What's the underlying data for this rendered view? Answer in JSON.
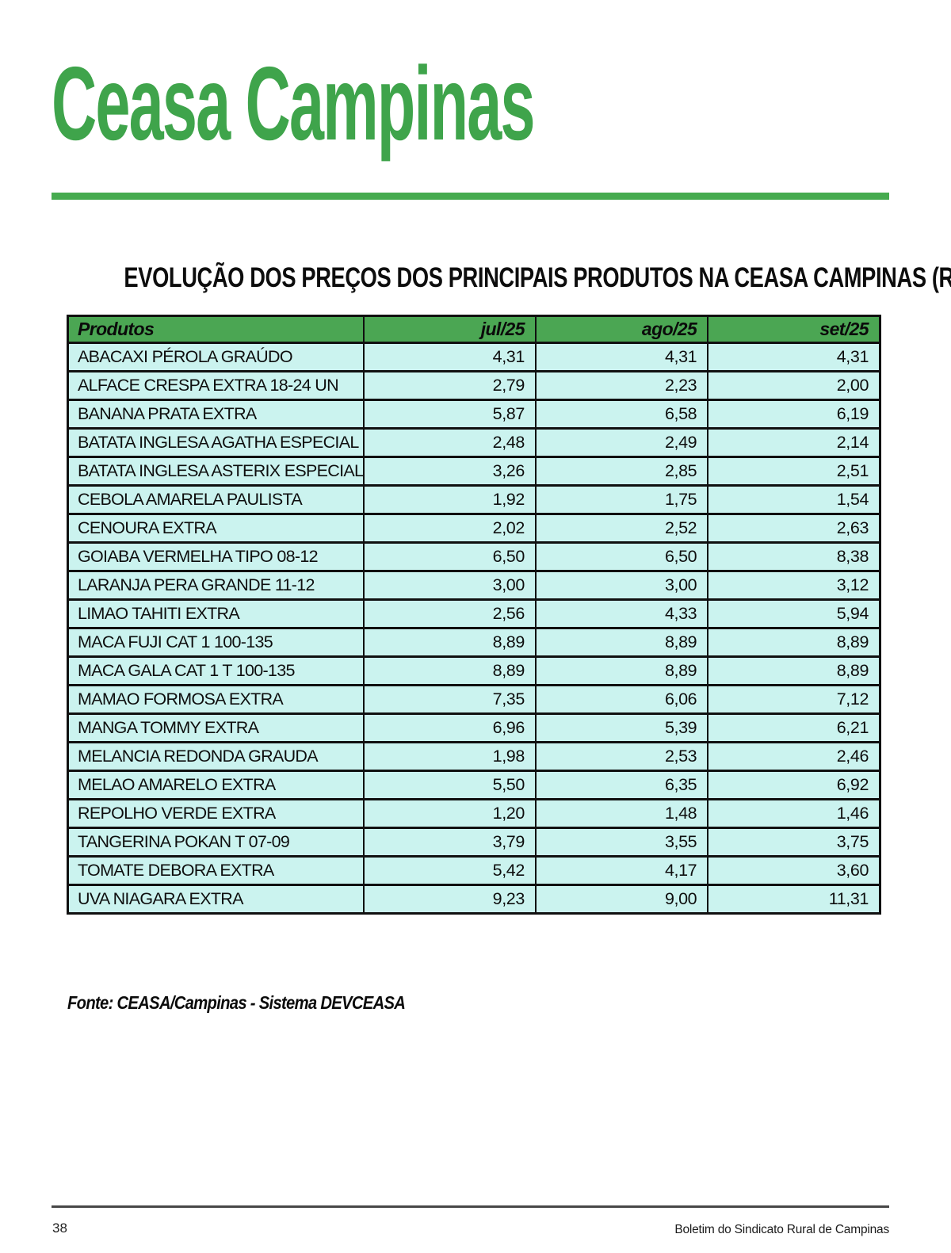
{
  "masthead": {
    "title": "Ceasa Campinas"
  },
  "colors": {
    "masthead_green": "#3fa44b",
    "rule_green": "#46ab4f",
    "table_header_green": "#4ba653",
    "table_cell_cyan": "#cbf3ef",
    "border_black": "#101010"
  },
  "section": {
    "title": "EVOLUÇÃO DOS PREÇOS DOS PRINCIPAIS PRODUTOS NA CEASA CAMPINAS (R$/kg)"
  },
  "table": {
    "headers": [
      "Produtos",
      "jul/25",
      "ago/25",
      "set/25"
    ],
    "rows": [
      {
        "produto": "ABACAXI PÉROLA GRAÚDO",
        "precos": [
          "4,31",
          "4,31",
          "4,31"
        ]
      },
      {
        "produto": "ALFACE CRESPA EXTRA 18-24 UN",
        "precos": [
          "2,79",
          "2,23",
          "2,00"
        ]
      },
      {
        "produto": "BANANA PRATA EXTRA",
        "precos": [
          "5,87",
          "6,58",
          "6,19"
        ]
      },
      {
        "produto": "BATATA INGLESA AGATHA ESPECIAL",
        "precos": [
          "2,48",
          "2,49",
          "2,14"
        ]
      },
      {
        "produto": "BATATA INGLESA ASTERIX ESPECIAL",
        "precos": [
          "3,26",
          "2,85",
          "2,51"
        ]
      },
      {
        "produto": "CEBOLA AMARELA PAULISTA",
        "precos": [
          "1,92",
          "1,75",
          "1,54"
        ]
      },
      {
        "produto": "CENOURA EXTRA",
        "precos": [
          "2,02",
          "2,52",
          "2,63"
        ]
      },
      {
        "produto": "GOIABA VERMELHA TIPO 08-12",
        "precos": [
          "6,50",
          "6,50",
          "8,38"
        ]
      },
      {
        "produto": "LARANJA PERA GRANDE 11-12",
        "precos": [
          "3,00",
          "3,00",
          "3,12"
        ]
      },
      {
        "produto": "LIMAO TAHITI EXTRA",
        "precos": [
          "2,56",
          "4,33",
          "5,94"
        ]
      },
      {
        "produto": "MACA FUJI CAT 1 100-135",
        "precos": [
          "8,89",
          "8,89",
          "8,89"
        ]
      },
      {
        "produto": "MACA GALA CAT 1 T 100-135",
        "precos": [
          "8,89",
          "8,89",
          "8,89"
        ]
      },
      {
        "produto": "MAMAO FORMOSA EXTRA",
        "precos": [
          "7,35",
          "6,06",
          "7,12"
        ]
      },
      {
        "produto": "MANGA TOMMY EXTRA",
        "precos": [
          "6,96",
          "5,39",
          "6,21"
        ]
      },
      {
        "produto": "MELANCIA REDONDA GRAUDA",
        "precos": [
          "1,98",
          "2,53",
          "2,46"
        ]
      },
      {
        "produto": "MELAO AMARELO EXTRA",
        "precos": [
          "5,50",
          "6,35",
          "6,92"
        ]
      },
      {
        "produto": "REPOLHO VERDE EXTRA",
        "precos": [
          "1,20",
          "1,48",
          "1,46"
        ]
      },
      {
        "produto": "TANGERINA POKAN T 07-09",
        "precos": [
          "3,79",
          "3,55",
          "3,75"
        ]
      },
      {
        "produto": "TOMATE DEBORA EXTRA",
        "precos": [
          "5,42",
          "4,17",
          "3,60"
        ]
      },
      {
        "produto": "UVA NIAGARA EXTRA",
        "precos": [
          "9,23",
          "9,00",
          "11,31"
        ]
      }
    ]
  },
  "source_note": "Fonte: CEASA/Campinas - Sistema DEVCEASA",
  "footer": {
    "page_number": "38",
    "publication": "Boletim do Sindicato Rural de Campinas"
  }
}
